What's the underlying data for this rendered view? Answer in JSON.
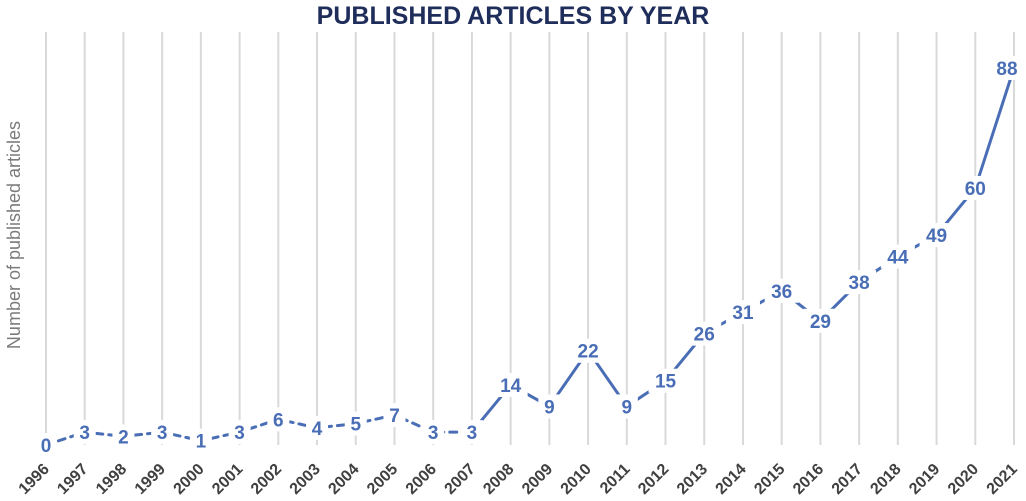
{
  "chart_data": {
    "type": "line",
    "title": "PUBLISHED ARTICLES BY YEAR",
    "xlabel": "",
    "ylabel": "Number of published articles",
    "x": [
      "1996",
      "1997",
      "1998",
      "1999",
      "2000",
      "2001",
      "2002",
      "2003",
      "2004",
      "2005",
      "2006",
      "2007",
      "2008",
      "2009",
      "2010",
      "2011",
      "2012",
      "2013",
      "2014",
      "2015",
      "2016",
      "2017",
      "2018",
      "2019",
      "2020",
      "2021"
    ],
    "series": [
      {
        "values": [
          0,
          3,
          2,
          3,
          1,
          3,
          6,
          4,
          5,
          7,
          3,
          3,
          14,
          9,
          22,
          9,
          15,
          26,
          31,
          36,
          29,
          38,
          44,
          49,
          60,
          88
        ]
      }
    ],
    "ylim": [
      0,
      95
    ],
    "grid": "vertical",
    "legend": "none",
    "line_style": {
      "dashed_through": "2007",
      "solid_from": "2007"
    },
    "colors": {
      "line": "#4a6eb5",
      "labels": "#4a6eb5",
      "title": "#1f2d5a",
      "grid": "#d9d9d9"
    }
  }
}
